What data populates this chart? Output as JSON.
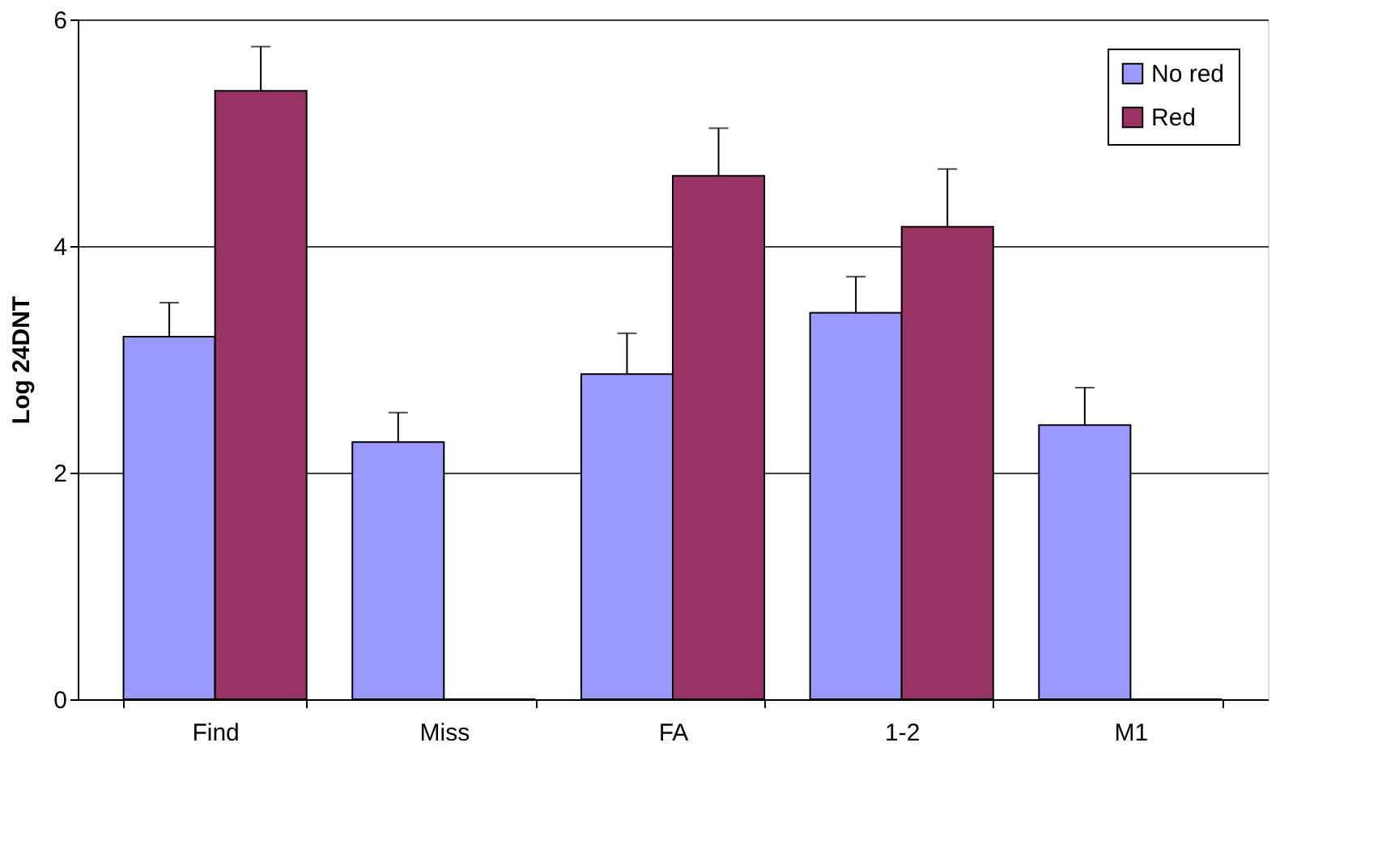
{
  "chart_data": {
    "type": "bar",
    "ylabel": "Log 24DNT",
    "categories": [
      "Find",
      "Miss",
      "FA",
      "1-2",
      "M1"
    ],
    "series": [
      {
        "name": "No red",
        "color": "#9999ff",
        "values": [
          3.2,
          2.27,
          2.87,
          3.41,
          2.42
        ],
        "errors": [
          [
            3.2,
            3.5
          ],
          [
            2.27,
            2.53
          ],
          [
            2.87,
            3.23
          ],
          [
            3.41,
            3.73
          ],
          [
            2.42,
            2.75
          ]
        ]
      },
      {
        "name": "Red",
        "color": "#993366",
        "values": [
          5.37,
          0,
          4.62,
          4.17,
          0
        ],
        "errors": [
          [
            5.37,
            5.76
          ],
          null,
          [
            4.62,
            5.04
          ],
          [
            4.17,
            4.68
          ],
          null
        ]
      }
    ],
    "ylim": [
      0,
      6
    ],
    "yticks": [
      0,
      2,
      4,
      6
    ],
    "grid": "y",
    "legend": "top right"
  }
}
